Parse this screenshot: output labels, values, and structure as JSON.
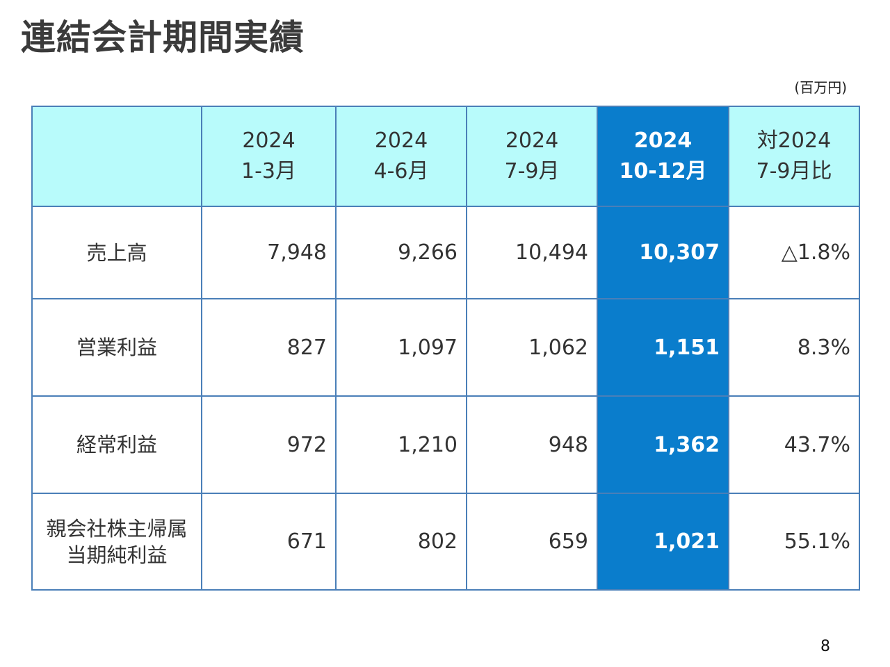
{
  "slide": {
    "title": "連結会計期間実績",
    "unit_note": "(百万円)",
    "page_number": "8",
    "accent_color": "#0a7dcc",
    "header_bg_color": "#b8fbfb",
    "border_color": "#4a7fb8"
  },
  "table": {
    "columns": [
      {
        "line1": "2024",
        "line2": "1-3月"
      },
      {
        "line1": "2024",
        "line2": "4-6月"
      },
      {
        "line1": "2024",
        "line2": "7-9月"
      },
      {
        "line1": "2024",
        "line2": "10-12月",
        "highlighted": true
      },
      {
        "line1": "対2024",
        "line2": "7-9月比"
      }
    ],
    "rows": [
      {
        "label_line1": "売上高",
        "label_line2": "",
        "values": [
          "7,948",
          "9,266",
          "10,494",
          "10,307",
          "△1.8%"
        ]
      },
      {
        "label_line1": "営業利益",
        "label_line2": "",
        "values": [
          "827",
          "1,097",
          "1,062",
          "1,151",
          "8.3%"
        ]
      },
      {
        "label_line1": "経常利益",
        "label_line2": "",
        "values": [
          "972",
          "1,210",
          "948",
          "1,362",
          "43.7%"
        ]
      },
      {
        "label_line1": "親会社株主帰属",
        "label_line2": "当期純利益",
        "values": [
          "671",
          "802",
          "659",
          "1,021",
          "55.1%"
        ]
      }
    ]
  }
}
